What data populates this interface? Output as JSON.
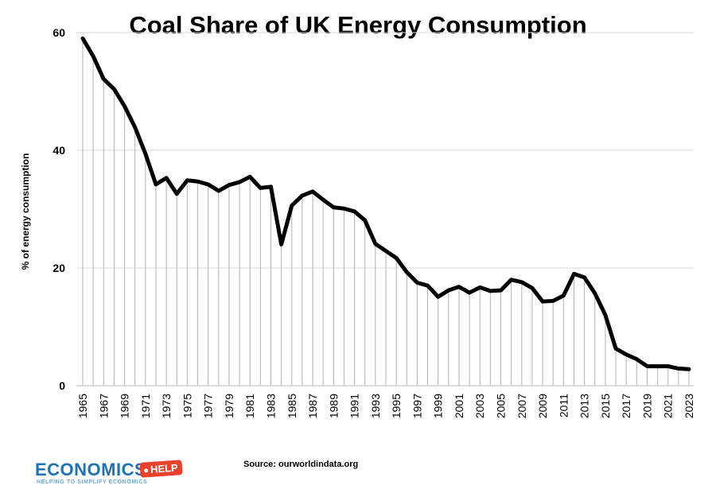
{
  "chart_data": {
    "type": "line",
    "title": "Coal Share of UK Energy Consumption",
    "xlabel": "",
    "ylabel": "% of energy consumption",
    "ylim": [
      0,
      60
    ],
    "yticks": [
      0,
      20,
      40,
      60
    ],
    "grid": "horizontal",
    "drop_lines": true,
    "series_color": "#000000",
    "x": [
      1965,
      1966,
      1967,
      1968,
      1969,
      1970,
      1971,
      1972,
      1973,
      1974,
      1975,
      1976,
      1977,
      1978,
      1979,
      1980,
      1981,
      1982,
      1983,
      1984,
      1985,
      1986,
      1987,
      1988,
      1989,
      1990,
      1991,
      1992,
      1993,
      1994,
      1995,
      1996,
      1997,
      1998,
      1999,
      2000,
      2001,
      2002,
      2003,
      2004,
      2005,
      2006,
      2007,
      2008,
      2009,
      2010,
      2011,
      2012,
      2013,
      2014,
      2015,
      2016,
      2017,
      2018,
      2019,
      2020,
      2021,
      2022,
      2023
    ],
    "xtick_labels": [
      "1965",
      "1967",
      "1969",
      "1971",
      "1973",
      "1975",
      "1977",
      "1979",
      "1981",
      "1983",
      "1985",
      "1987",
      "1989",
      "1991",
      "1993",
      "1995",
      "1997",
      "1999",
      "2001",
      "2003",
      "2005",
      "2007",
      "2009",
      "2011",
      "2013",
      "2015",
      "2017",
      "2019",
      "2021",
      "2023"
    ],
    "series": [
      {
        "name": "Coal share",
        "values": [
          59.0,
          56.0,
          52.1,
          50.4,
          47.5,
          43.9,
          39.4,
          34.2,
          35.3,
          32.6,
          34.9,
          34.7,
          34.2,
          33.1,
          34.1,
          34.6,
          35.5,
          33.6,
          33.8,
          24.0,
          30.6,
          32.3,
          33.0,
          31.6,
          30.3,
          30.1,
          29.6,
          28.1,
          24.1,
          22.9,
          21.7,
          19.3,
          17.5,
          17.0,
          15.1,
          16.2,
          16.8,
          15.8,
          16.7,
          16.1,
          16.2,
          18.0,
          17.6,
          16.6,
          14.3,
          14.4,
          15.3,
          19.0,
          18.4,
          15.7,
          12.0,
          6.3,
          5.3,
          4.5,
          3.3,
          3.3,
          3.3,
          2.9,
          2.8
        ]
      }
    ]
  },
  "source": "Source: ourworldindata.org",
  "logo": {
    "word": "ECONOMICS",
    "badge": "HELP",
    "tagline": "HELPING TO SIMPLIFY ECONOMICS",
    "brand_color": "#1e73b8",
    "badge_color": "#e8412c"
  }
}
